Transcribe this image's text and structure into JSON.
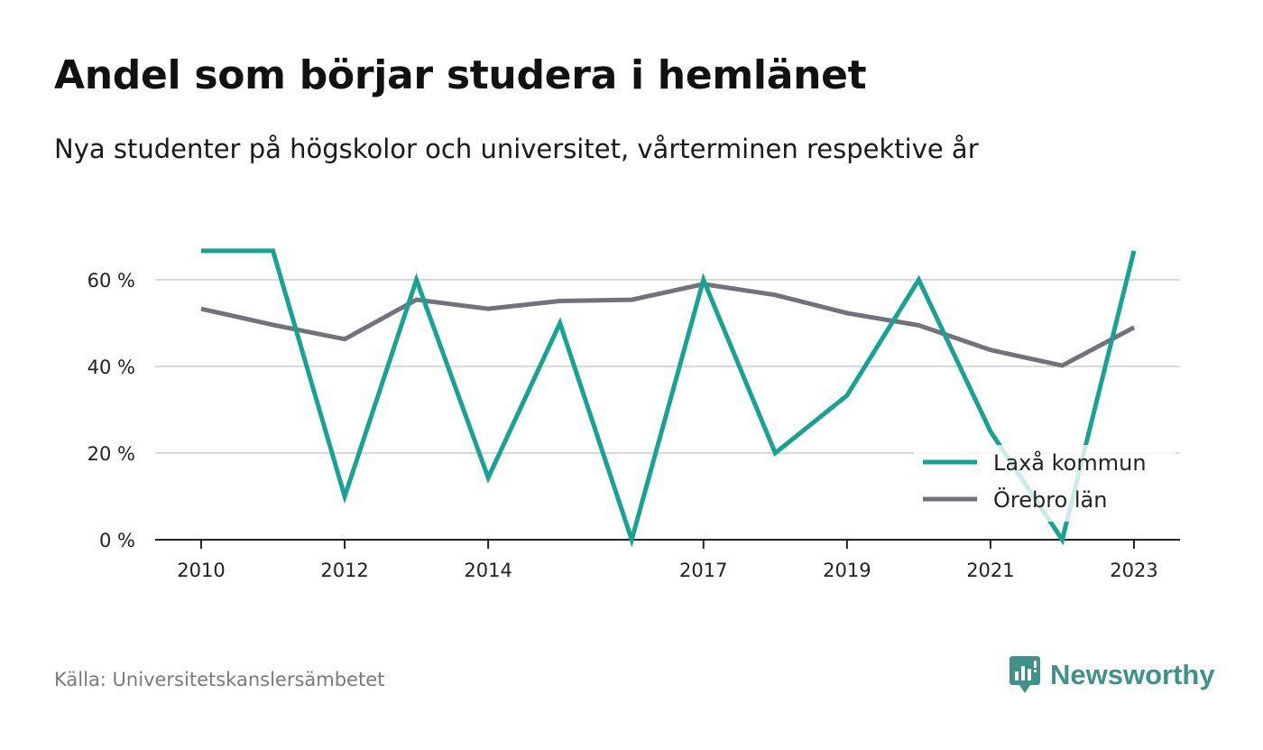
{
  "header": {
    "title": "Andel som börjar studera i hemlänet",
    "subtitle": "Nya studenter på högskolor och universitet, vårterminen respektive år"
  },
  "footer": {
    "source": "Källa: Universitetskanslersämbetet",
    "brand": "Newsworthy"
  },
  "colors": {
    "laxa": "#16a394",
    "orebro": "#737179",
    "grid": "#d9d9d9",
    "axis": "#222222",
    "brand": "#3f9189"
  },
  "chart_data": {
    "type": "line",
    "title": "Andel som börjar studera i hemlänet",
    "subtitle": "Nya studenter på högskolor och universitet, vårterminen respektive år",
    "x": [
      2010,
      2011,
      2012,
      2013,
      2014,
      2015,
      2016,
      2017,
      2018,
      2019,
      2020,
      2021,
      2022,
      2023
    ],
    "x_ticks": [
      2010,
      2012,
      2014,
      2017,
      2019,
      2021,
      2023
    ],
    "y_ticks": [
      0,
      20,
      40,
      60
    ],
    "y_tick_labels": [
      "0 %",
      "20 %",
      "40 %",
      "60 %"
    ],
    "ylim": [
      0,
      67
    ],
    "grid": true,
    "legend_position": "bottom-right",
    "series": [
      {
        "name": "Laxå kommun",
        "color": "#16a394",
        "values": [
          66.7,
          66.7,
          10,
          60,
          14.3,
          50,
          0,
          60,
          20,
          33.3,
          60,
          25,
          0,
          66.7
        ]
      },
      {
        "name": "Örebro län",
        "color": "#737179",
        "values": [
          53.3,
          49.6,
          46.3,
          55.4,
          53.3,
          55.1,
          55.4,
          59.0,
          56.5,
          52.3,
          49.5,
          43.8,
          40.2,
          49.0
        ]
      }
    ]
  }
}
